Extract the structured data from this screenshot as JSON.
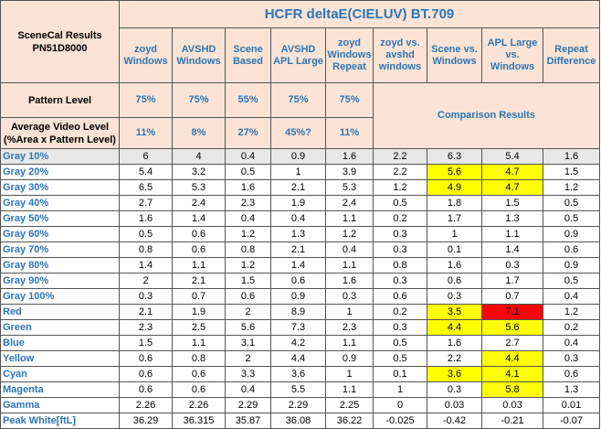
{
  "title": "HCFR deltaE(CIELUV) BT.709",
  "section_label": "SceneCal Results",
  "model": "PN51D8000",
  "columns": [
    {
      "line1": "zoyd",
      "line2": "Windows"
    },
    {
      "line1": "AVSHD",
      "line2": "Windows"
    },
    {
      "line1": "Scene",
      "line2": "Based"
    },
    {
      "line1": "AVSHD",
      "line2": "APL Large"
    },
    {
      "line1": "zoyd",
      "line2": "Windows",
      "line3": "Repeat"
    },
    {
      "line1": "zoyd vs.",
      "line2": "avshd",
      "line3": "windows"
    },
    {
      "line1": "Scene vs.",
      "line2": "Windows"
    },
    {
      "line1": "APL Large",
      "line2": "vs.",
      "line3": "Windows"
    },
    {
      "line1": "Repeat",
      "line2": "Difference"
    }
  ],
  "pattern_level_label": "Pattern Level",
  "pattern_levels": [
    "75%",
    "75%",
    "55%",
    "75%",
    "75%"
  ],
  "avg_video_level_label_1": "Average Video Level",
  "avg_video_level_label_2": "(%Area x Pattern Level)",
  "avg_video_levels": [
    "11%",
    "8%",
    "27%",
    "45%?",
    "11%"
  ],
  "comparison_label": "Comparison Results",
  "rows": [
    {
      "label": "Gray 10%",
      "values": [
        "6",
        "4",
        "0.4",
        "0.9",
        "1.6",
        "2.2",
        "6.3",
        "5.4",
        "1.6"
      ]
    },
    {
      "label": "Gray 20%",
      "values": [
        "5.4",
        "3.2",
        "0.5",
        "1",
        "3.9",
        "2.2",
        "5.6",
        "4.7",
        "1.5"
      ]
    },
    {
      "label": "Gray 30%",
      "values": [
        "6.5",
        "5.3",
        "1.6",
        "2.1",
        "5.3",
        "1.2",
        "4.9",
        "4.7",
        "1.2"
      ]
    },
    {
      "label": "Gray 40%",
      "values": [
        "2.7",
        "2.4",
        "2.3",
        "1.9",
        "2.4",
        "0.5",
        "1.8",
        "1.5",
        "0.5"
      ]
    },
    {
      "label": "Gray 50%",
      "values": [
        "1.6",
        "1.4",
        "0.4",
        "0.4",
        "1.1",
        "0.2",
        "1.7",
        "1.3",
        "0.5"
      ]
    },
    {
      "label": "Gray 60%",
      "values": [
        "0.5",
        "0.6",
        "1.2",
        "1.3",
        "1.2",
        "0.3",
        "1",
        "1.1",
        "0.9"
      ]
    },
    {
      "label": "Gray 70%",
      "values": [
        "0.8",
        "0.6",
        "0.8",
        "2.1",
        "0.4",
        "0.3",
        "0.1",
        "1.4",
        "0.6"
      ]
    },
    {
      "label": "Gray 80%",
      "values": [
        "1.4",
        "1.1",
        "1.2",
        "1.4",
        "1.1",
        "0.8",
        "1.6",
        "0.3",
        "0.9"
      ]
    },
    {
      "label": "Gray 90%",
      "values": [
        "2",
        "2.1",
        "1.5",
        "0.6",
        "1.6",
        "0.3",
        "0.6",
        "1.7",
        "0.5"
      ]
    },
    {
      "label": "Gray 100%",
      "values": [
        "0.3",
        "0.7",
        "0.6",
        "0.9",
        "0.3",
        "0.6",
        "0.3",
        "0.7",
        "0.4"
      ]
    },
    {
      "label": "Red",
      "values": [
        "2.1",
        "1.9",
        "2",
        "8.9",
        "1",
        "0.2",
        "3.5",
        "7.1",
        "1.2"
      ]
    },
    {
      "label": "Green",
      "values": [
        "2.3",
        "2.5",
        "5.6",
        "7.3",
        "2.3",
        "0.3",
        "4.4",
        "5.6",
        "0.2"
      ]
    },
    {
      "label": "Blue",
      "values": [
        "1.5",
        "1.1",
        "3.1",
        "4.2",
        "1.1",
        "0.5",
        "1.6",
        "2.7",
        "0.4"
      ]
    },
    {
      "label": "Yellow",
      "values": [
        "0.6",
        "0.8",
        "2",
        "4.4",
        "0.9",
        "0.5",
        "2.2",
        "4.4",
        "0.3"
      ]
    },
    {
      "label": "Cyan",
      "values": [
        "0.6",
        "0.6",
        "3.3",
        "3.6",
        "1",
        "0.1",
        "3.6",
        "4.1",
        "0.6"
      ]
    },
    {
      "label": "Magenta",
      "values": [
        "0.6",
        "0.6",
        "0.4",
        "5.5",
        "1.1",
        "1",
        "0.3",
        "5.8",
        "1.3"
      ]
    },
    {
      "label": "Gamma",
      "values": [
        "2.26",
        "2.26",
        "2.29",
        "2.29",
        "2.25",
        "0",
        "0.03",
        "0.03",
        "0.01"
      ]
    },
    {
      "label": "Peak White[ftL]",
      "values": [
        "36.29",
        "36.315",
        "35.87",
        "36.08",
        "36.22",
        "-0.025",
        "-0.42",
        "-0.21",
        "-0.07"
      ]
    }
  ],
  "highlight_colors": {
    "yellow": "#ffff00",
    "red": "#ff0000",
    "header_bg": "#fbe4d5",
    "accent": "#2e75b6"
  }
}
